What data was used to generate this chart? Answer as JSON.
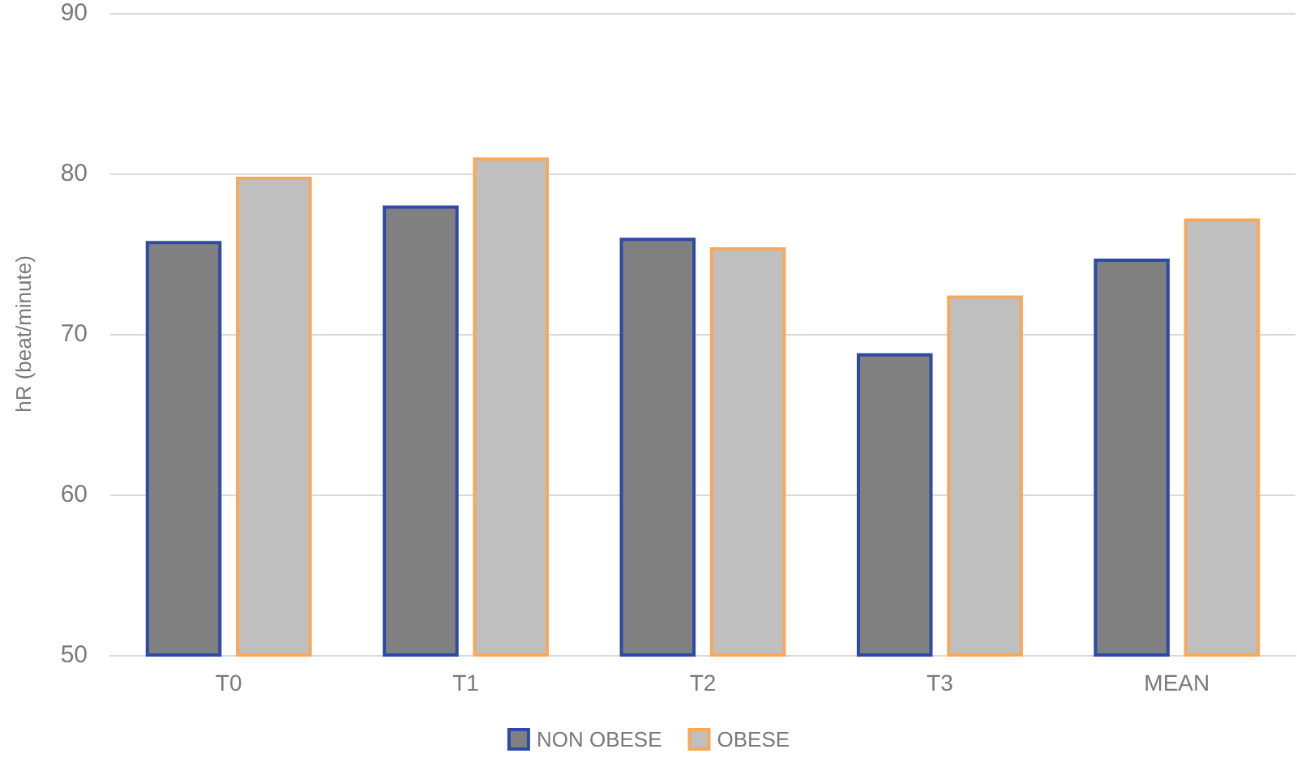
{
  "chart_data": {
    "type": "bar",
    "ylabel": "hR (beat/minute)",
    "categories": [
      "T0",
      "T1",
      "T2",
      "T3",
      "MEAN"
    ],
    "series": [
      {
        "name": "NON OBESE",
        "color": "#808080",
        "values": [
          75.8,
          78.0,
          76.0,
          68.8,
          74.7
        ]
      },
      {
        "name": "OBESE",
        "color": "#bfbfbf",
        "values": [
          79.8,
          81.0,
          75.4,
          72.4,
          77.2
        ]
      }
    ],
    "ylim": [
      50,
      90
    ],
    "yticks": [
      50,
      60,
      70,
      80,
      90
    ],
    "grid": "y",
    "legend": "bottom"
  }
}
